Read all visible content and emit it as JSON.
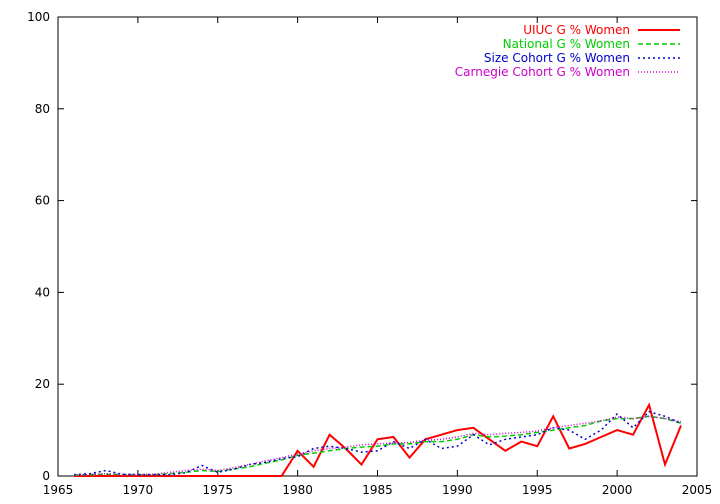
{
  "chart_data": {
    "type": "line",
    "xlim": [
      1965,
      2005
    ],
    "ylim": [
      0,
      100
    ],
    "xticks": [
      1965,
      1970,
      1975,
      1980,
      1985,
      1990,
      1995,
      2000,
      2005
    ],
    "yticks": [
      0,
      20,
      40,
      60,
      80,
      100
    ],
    "grid": false,
    "legend_position": "top-right",
    "series": [
      {
        "name": "UIUC G % Women",
        "color": "#ff0000",
        "dash": "solid",
        "x": [
          1966,
          1967,
          1968,
          1969,
          1970,
          1971,
          1972,
          1973,
          1974,
          1975,
          1976,
          1977,
          1978,
          1979,
          1980,
          1981,
          1982,
          1983,
          1984,
          1985,
          1986,
          1987,
          1988,
          1989,
          1990,
          1991,
          1992,
          1993,
          1994,
          1995,
          1996,
          1997,
          1998,
          1999,
          2000,
          2001,
          2002,
          2003,
          2004
        ],
        "y": [
          0,
          0,
          0,
          0,
          0,
          0,
          0,
          0,
          0,
          0,
          0,
          0,
          0,
          0,
          5.5,
          2.0,
          9.0,
          6.0,
          2.5,
          8.0,
          8.5,
          4.0,
          8.0,
          9.0,
          10.0,
          10.5,
          8.0,
          5.5,
          7.5,
          6.5,
          13.0,
          6.0,
          7.0,
          8.5,
          10.0,
          9.0,
          15.5,
          2.5,
          11.0
        ]
      },
      {
        "name": "National G % Women",
        "color": "#00cc00",
        "dash": "dashed",
        "x": [
          1966,
          1967,
          1968,
          1969,
          1970,
          1971,
          1972,
          1973,
          1974,
          1975,
          1976,
          1977,
          1978,
          1979,
          1980,
          1981,
          1982,
          1983,
          1984,
          1985,
          1986,
          1987,
          1988,
          1989,
          1990,
          1991,
          1992,
          1993,
          1994,
          1995,
          1996,
          1997,
          1998,
          1999,
          2000,
          2001,
          2002,
          2003,
          2004
        ],
        "y": [
          0.2,
          0.3,
          0.4,
          0.3,
          0.3,
          0.3,
          0.5,
          0.8,
          1.2,
          1.0,
          1.5,
          2.0,
          2.8,
          3.5,
          4.5,
          5.0,
          5.5,
          6.0,
          6.3,
          6.5,
          7.0,
          7.0,
          7.5,
          7.5,
          8.0,
          9.0,
          8.5,
          8.7,
          9.0,
          9.5,
          10.0,
          10.5,
          11.0,
          12.0,
          12.5,
          12.5,
          13.0,
          12.5,
          11.5
        ]
      },
      {
        "name": "Size Cohort G % Women",
        "color": "#0000cc",
        "dash": "dotted",
        "x": [
          1966,
          1967,
          1968,
          1969,
          1970,
          1971,
          1972,
          1973,
          1974,
          1975,
          1976,
          1977,
          1978,
          1979,
          1980,
          1981,
          1982,
          1983,
          1984,
          1985,
          1986,
          1987,
          1988,
          1989,
          1990,
          1991,
          1992,
          1993,
          1994,
          1995,
          1996,
          1997,
          1998,
          1999,
          2000,
          2001,
          2002,
          2003,
          2004
        ],
        "y": [
          0.3,
          0.5,
          1.2,
          0.4,
          0.3,
          0.3,
          0.3,
          0.7,
          2.3,
          0.8,
          1.5,
          2.5,
          3.0,
          3.8,
          4.2,
          6.0,
          6.5,
          6.0,
          5.2,
          5.5,
          7.5,
          6.0,
          8.0,
          6.0,
          6.5,
          9.0,
          6.8,
          8.0,
          8.5,
          9.0,
          10.5,
          10.0,
          8.0,
          10.0,
          13.5,
          10.5,
          14.0,
          13.0,
          11.5
        ]
      },
      {
        "name": "Carnegie Cohort G % Women",
        "color": "#cc00cc",
        "dash": "fine-dotted",
        "x": [
          1966,
          1967,
          1968,
          1969,
          1970,
          1971,
          1972,
          1973,
          1974,
          1975,
          1976,
          1977,
          1978,
          1979,
          1980,
          1981,
          1982,
          1983,
          1984,
          1985,
          1986,
          1987,
          1988,
          1989,
          1990,
          1991,
          1992,
          1993,
          1994,
          1995,
          1996,
          1997,
          1998,
          1999,
          2000,
          2001,
          2002,
          2003,
          2004
        ],
        "y": [
          0.2,
          0.3,
          0.5,
          0.3,
          0.3,
          0.4,
          0.8,
          1.2,
          1.5,
          1.2,
          1.8,
          2.5,
          3.3,
          4.0,
          4.8,
          5.5,
          6.0,
          6.3,
          6.8,
          7.0,
          7.2,
          7.3,
          7.8,
          8.0,
          8.5,
          9.3,
          9.0,
          9.3,
          9.5,
          9.8,
          10.5,
          11.0,
          11.5,
          12.0,
          12.8,
          12.5,
          13.0,
          12.5,
          11.8
        ]
      }
    ]
  }
}
